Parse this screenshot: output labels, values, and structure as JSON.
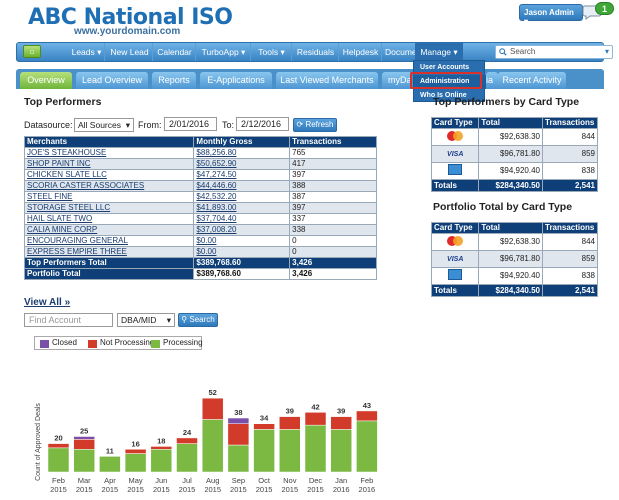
{
  "header": {
    "logo": "ABC National ISO",
    "site": "www.yourdomain.com",
    "user": "Jason Admin",
    "notification_count": "1"
  },
  "nav": {
    "home": "⌂",
    "items": [
      "Leads",
      "New Lead",
      "Calendar",
      "TurboApp",
      "Tools",
      "Residuals",
      "Helpdesk",
      "Documents",
      "Manage"
    ],
    "search_placeholder": "Search"
  },
  "tabs": [
    "Overview",
    "Lead Overview",
    "Reports",
    "E-Applications",
    "Last Viewed Merchants",
    "myDa",
    "ia",
    "Recent Activity"
  ],
  "manage_menu": [
    "User Accounts",
    "Administration",
    "Who Is Online"
  ],
  "top_performers": {
    "title": "Top Performers",
    "datasource_label": "Datasource:",
    "datasource_value": "All Sources",
    "from_label": "From:",
    "from_value": "2/01/2016",
    "to_label": "To:",
    "to_value": "2/12/2016",
    "refresh": "Refresh",
    "columns": [
      "Merchants",
      "Monthly Gross",
      "Transactions"
    ],
    "rows": [
      [
        "JOE'S STEAKHOUSE",
        "$88,256.80",
        "765"
      ],
      [
        "SHOP PAINT INC",
        "$50,652.90",
        "417"
      ],
      [
        "CHICKEN SLATE LLC",
        "$47,274.50",
        "397"
      ],
      [
        "SCORIA CASTER ASSOCIATES",
        "$44,446.60",
        "388"
      ],
      [
        "STEEL FINE",
        "$42,532.20",
        "387"
      ],
      [
        "STORAGE STEEL LLC",
        "$41,893.00",
        "397"
      ],
      [
        "HAIL SLATE TWO",
        "$37,704.40",
        "337"
      ],
      [
        "CALIA MINE CORP",
        "$37,008.20",
        "338"
      ],
      [
        "ENCOURAGING GENERAL",
        "$0.00",
        "0"
      ],
      [
        "EXPRESS EMPIRE THREE",
        "$0.00",
        "0"
      ]
    ],
    "total": [
      "Top Performers Total",
      "$389,768.60",
      "3,426"
    ],
    "portfolio_total": [
      "Portfolio Total",
      "$389,768.60",
      "3,426"
    ],
    "view_all": "View All »"
  },
  "find": {
    "placeholder": "Find Account",
    "select_value": "DBA/MID",
    "search": "Search"
  },
  "card_type_top": {
    "title": "Top Performers by Card Type",
    "columns": [
      "Card Type",
      "Total",
      "Transactions"
    ],
    "rows": [
      {
        "card": "mastercard",
        "total": "$92,638.30",
        "tx": "844"
      },
      {
        "card": "visa",
        "total": "$96,781.80",
        "tx": "859"
      },
      {
        "card": "amex",
        "total": "$94,920.40",
        "tx": "838"
      }
    ],
    "totals": [
      "Totals",
      "$284,340.50",
      "2,541"
    ]
  },
  "card_type_portfolio": {
    "title": "Portfolio Total by Card Type",
    "columns": [
      "Card Type",
      "Total",
      "Transactions"
    ],
    "rows": [
      {
        "card": "mastercard",
        "total": "$92,638.30",
        "tx": "844"
      },
      {
        "card": "visa",
        "total": "$96,781.80",
        "tx": "859"
      },
      {
        "card": "amex",
        "total": "$94,920.40",
        "tx": "838"
      }
    ],
    "totals": [
      "Totals",
      "$284,340.50",
      "2,541"
    ]
  },
  "visa_text": "VISA",
  "colors": {
    "closed": "#7a4fa8",
    "not_processing": "#d23b2a",
    "processing": "#7bb943",
    "nav": "#3983c4",
    "header_blue": "#0e3f78"
  },
  "chart_data": {
    "type": "bar",
    "stacked": true,
    "ylabel": "Count of Approved Deals",
    "legend": [
      "Closed",
      "Not Processing",
      "Processing"
    ],
    "categories": [
      "Feb 2015",
      "Mar 2015",
      "Apr 2015",
      "May 2015",
      "Jun 2015",
      "Jul 2015",
      "Aug 2015",
      "Sep 2015",
      "Oct 2015",
      "Nov 2015",
      "Dec 2015",
      "Jan 2016",
      "Feb 2016"
    ],
    "totals": [
      20,
      25,
      11,
      16,
      18,
      24,
      52,
      38,
      34,
      39,
      42,
      39,
      43
    ],
    "series": [
      {
        "name": "Processing",
        "values": [
          17,
          16,
          11,
          13,
          16,
          20,
          37,
          19,
          30,
          30,
          33,
          30,
          36
        ]
      },
      {
        "name": "Not Processing",
        "values": [
          3,
          7,
          0,
          3,
          2,
          4,
          15,
          15,
          4,
          9,
          9,
          9,
          7
        ]
      },
      {
        "name": "Closed",
        "values": [
          0,
          2,
          0,
          0,
          0,
          0,
          0,
          4,
          0,
          0,
          0,
          0,
          0
        ]
      }
    ]
  }
}
